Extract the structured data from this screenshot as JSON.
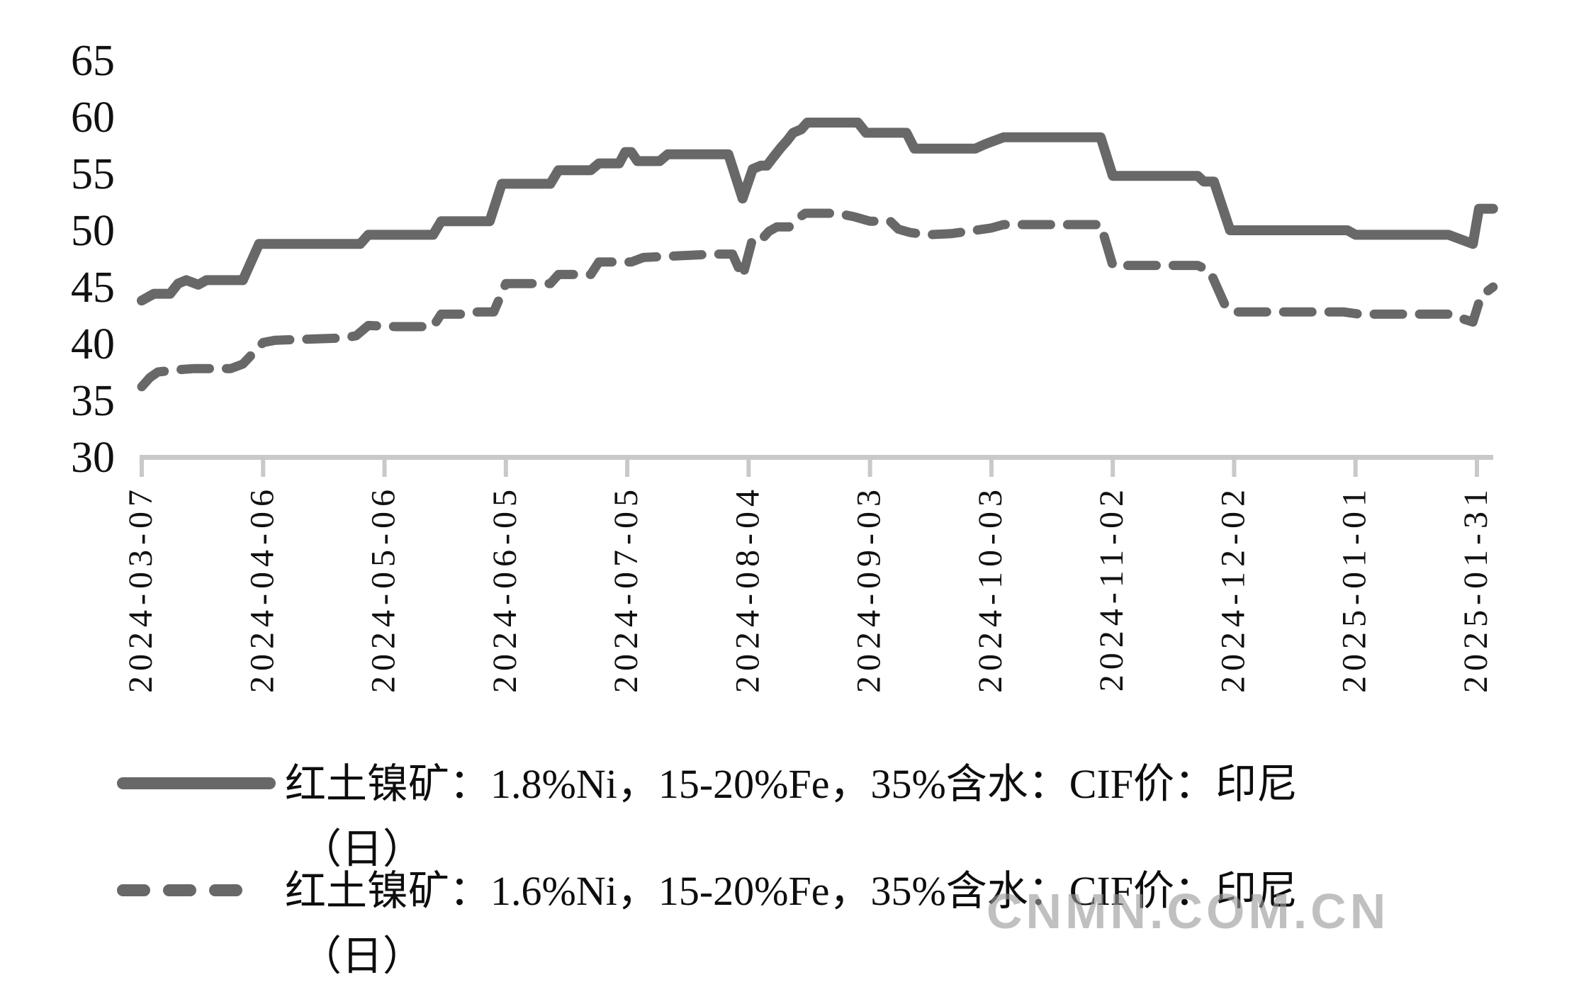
{
  "watermark": "CNMN.COM.CN",
  "colors": {
    "line": "#686868",
    "axis": "#c9c9c9",
    "text": "#111111",
    "watermark": "#9b9b9b"
  },
  "legend": {
    "entries": [
      {
        "style": "solid",
        "line1": "红土镍矿：1.8%Ni，15-20%Fe，35%含水：CIF价：印尼",
        "line2": "（日）"
      },
      {
        "style": "dashed",
        "line1": "红土镍矿：1.6%Ni，15-20%Fe，35%含水：CIF价：印尼",
        "line2": "（日）"
      }
    ]
  },
  "chart_data": {
    "type": "line",
    "title": "",
    "xlabel": "",
    "ylabel": "",
    "grid": false,
    "legend_position": "bottom-left",
    "y_ticks": [
      30,
      35,
      40,
      45,
      50,
      55,
      60,
      65
    ],
    "ylim": [
      30,
      67
    ],
    "x_tick_labels": [
      "2024-03-07",
      "2024-04-06",
      "2024-05-06",
      "2024-06-05",
      "2024-07-05",
      "2024-08-04",
      "2024-09-03",
      "2024-10-03",
      "2024-11-02",
      "2024-12-02",
      "2025-01-01",
      "2025-01-31"
    ],
    "x_tick_interval_days": 30,
    "x_domain_days": [
      0,
      334
    ],
    "series": [
      {
        "name": "红土镍矿：1.8%Ni，15-20%Fe，35%含水：CIF价：印尼（日）",
        "style": "solid",
        "points": [
          [
            0,
            43.8
          ],
          [
            1.5,
            44.1
          ],
          [
            3,
            44.4
          ],
          [
            7,
            44.4
          ],
          [
            9,
            45.3
          ],
          [
            11,
            45.6
          ],
          [
            14,
            45.2
          ],
          [
            16,
            45.6
          ],
          [
            25,
            45.6
          ],
          [
            29,
            48.8
          ],
          [
            54,
            48.8
          ],
          [
            56,
            49.6
          ],
          [
            72,
            49.6
          ],
          [
            74,
            50.8
          ],
          [
            86,
            50.8
          ],
          [
            89,
            54.1
          ],
          [
            101,
            54.1
          ],
          [
            103,
            55.3
          ],
          [
            111,
            55.3
          ],
          [
            113,
            55.9
          ],
          [
            118,
            55.9
          ],
          [
            119.5,
            56.9
          ],
          [
            121,
            56.9
          ],
          [
            122.5,
            56.1
          ],
          [
            128,
            56.1
          ],
          [
            130,
            56.7
          ],
          [
            145,
            56.7
          ],
          [
            148.5,
            52.8
          ],
          [
            151,
            55.4
          ],
          [
            153,
            55.7
          ],
          [
            154.5,
            55.7
          ],
          [
            156,
            56.4
          ],
          [
            158,
            57.3
          ],
          [
            159.5,
            57.9
          ],
          [
            161,
            58.6
          ],
          [
            163,
            58.9
          ],
          [
            164.5,
            59.5
          ],
          [
            177,
            59.5
          ],
          [
            179,
            58.6
          ],
          [
            189,
            58.6
          ],
          [
            191,
            57.2
          ],
          [
            206,
            57.2
          ],
          [
            208.5,
            57.6
          ],
          [
            213,
            58.2
          ],
          [
            237,
            58.2
          ],
          [
            240,
            54.8
          ],
          [
            261,
            54.8
          ],
          [
            262.5,
            54.3
          ],
          [
            265,
            54.3
          ],
          [
            269,
            50.0
          ],
          [
            298,
            50.0
          ],
          [
            300,
            49.6
          ],
          [
            323,
            49.6
          ],
          [
            329,
            48.8
          ],
          [
            330.5,
            51.9
          ],
          [
            334,
            51.9
          ]
        ]
      },
      {
        "name": "红土镍矿：1.6%Ni，15-20%Fe，35%含水：CIF价：印尼（日）",
        "style": "dashed",
        "points": [
          [
            0,
            36.2
          ],
          [
            2,
            37.0
          ],
          [
            4,
            37.5
          ],
          [
            9,
            37.7
          ],
          [
            13,
            37.8
          ],
          [
            22,
            37.8
          ],
          [
            25,
            38.2
          ],
          [
            30,
            40.1
          ],
          [
            33,
            40.3
          ],
          [
            50,
            40.5
          ],
          [
            53,
            40.7
          ],
          [
            56,
            41.6
          ],
          [
            63,
            41.5
          ],
          [
            72,
            41.5
          ],
          [
            74,
            42.6
          ],
          [
            81,
            42.6
          ],
          [
            83,
            42.8
          ],
          [
            87,
            42.8
          ],
          [
            90,
            45.3
          ],
          [
            101,
            45.3
          ],
          [
            103,
            46.1
          ],
          [
            111,
            46.1
          ],
          [
            113,
            47.2
          ],
          [
            121,
            47.2
          ],
          [
            124,
            47.6
          ],
          [
            142,
            47.9
          ],
          [
            146,
            47.9
          ],
          [
            148.5,
            45.9
          ],
          [
            151,
            49.3
          ],
          [
            153.5,
            49.3
          ],
          [
            155,
            49.9
          ],
          [
            157,
            50.3
          ],
          [
            160,
            50.3
          ],
          [
            162,
            51.0
          ],
          [
            164,
            51.5
          ],
          [
            172,
            51.5
          ],
          [
            176,
            51.2
          ],
          [
            180,
            50.8
          ],
          [
            185,
            50.8
          ],
          [
            187,
            50.1
          ],
          [
            190,
            49.8
          ],
          [
            194,
            49.6
          ],
          [
            200,
            49.7
          ],
          [
            206,
            50.0
          ],
          [
            210,
            50.2
          ],
          [
            213,
            50.5
          ],
          [
            237,
            50.5
          ],
          [
            240,
            46.9
          ],
          [
            261,
            46.9
          ],
          [
            264,
            46.4
          ],
          [
            268,
            43.2
          ],
          [
            271,
            42.8
          ],
          [
            297,
            42.8
          ],
          [
            301,
            42.6
          ],
          [
            323,
            42.6
          ],
          [
            329,
            41.9
          ],
          [
            331,
            44.2
          ],
          [
            334,
            45.0
          ]
        ]
      }
    ]
  }
}
